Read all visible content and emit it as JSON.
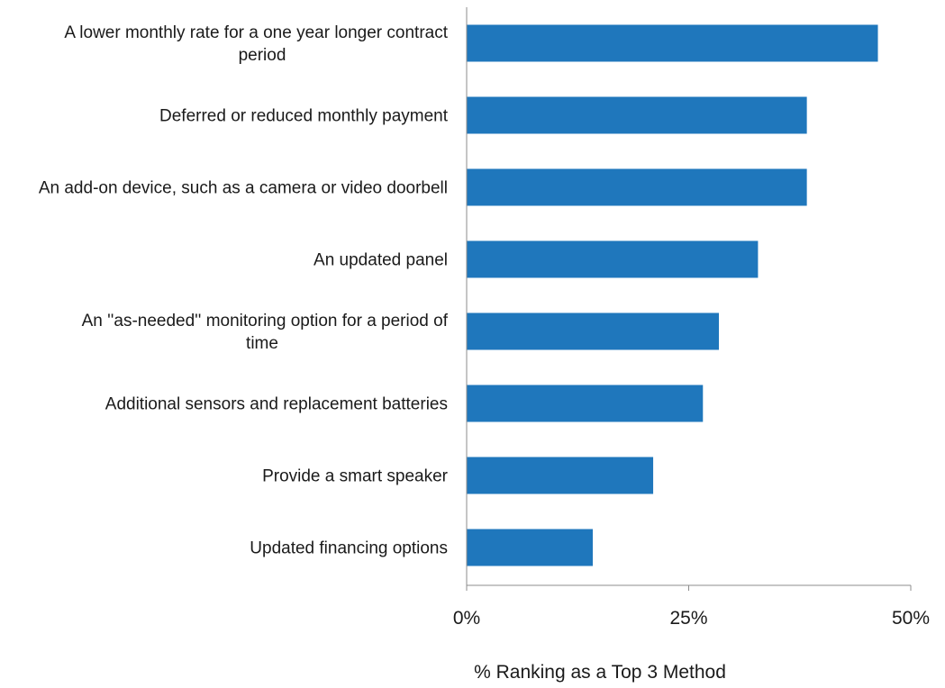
{
  "chart_data": {
    "type": "bar",
    "orientation": "horizontal",
    "categories": [
      "A lower monthly rate for a one year longer contract period",
      "Deferred or reduced monthly payment",
      "An add-on device, such as a camera or video doorbell",
      "An updated panel",
      "An ''as-needed'' monitoring option for a period of time",
      "Additional sensors and replacement batteries",
      "Provide a smart speaker",
      "Updated financing options"
    ],
    "category_lines": [
      [
        "A lower monthly rate for a one year longer contract",
        "period"
      ],
      [
        "Deferred or reduced monthly payment"
      ],
      [
        "An add-on device, such as a camera or video doorbell"
      ],
      [
        "An updated panel"
      ],
      [
        "An ''as-needed'' monitoring option for a period of",
        "time"
      ],
      [
        "Additional sensors and replacement batteries"
      ],
      [
        "Provide a smart speaker"
      ],
      [
        "Updated financing options"
      ]
    ],
    "values": [
      46.3,
      38.3,
      38.3,
      32.8,
      28.4,
      26.6,
      21.0,
      14.2
    ],
    "xlabel": "% Ranking as a Top 3 Method",
    "xlim": [
      0,
      50
    ],
    "xticks": [
      0,
      25,
      50
    ],
    "xtick_labels": [
      "0%",
      "25%",
      "50%"
    ],
    "grid": false,
    "legend": "none",
    "colors": {
      "bar": "#1f77bc",
      "axis": "#8c8c8c",
      "text": "#1a1a1a"
    }
  }
}
